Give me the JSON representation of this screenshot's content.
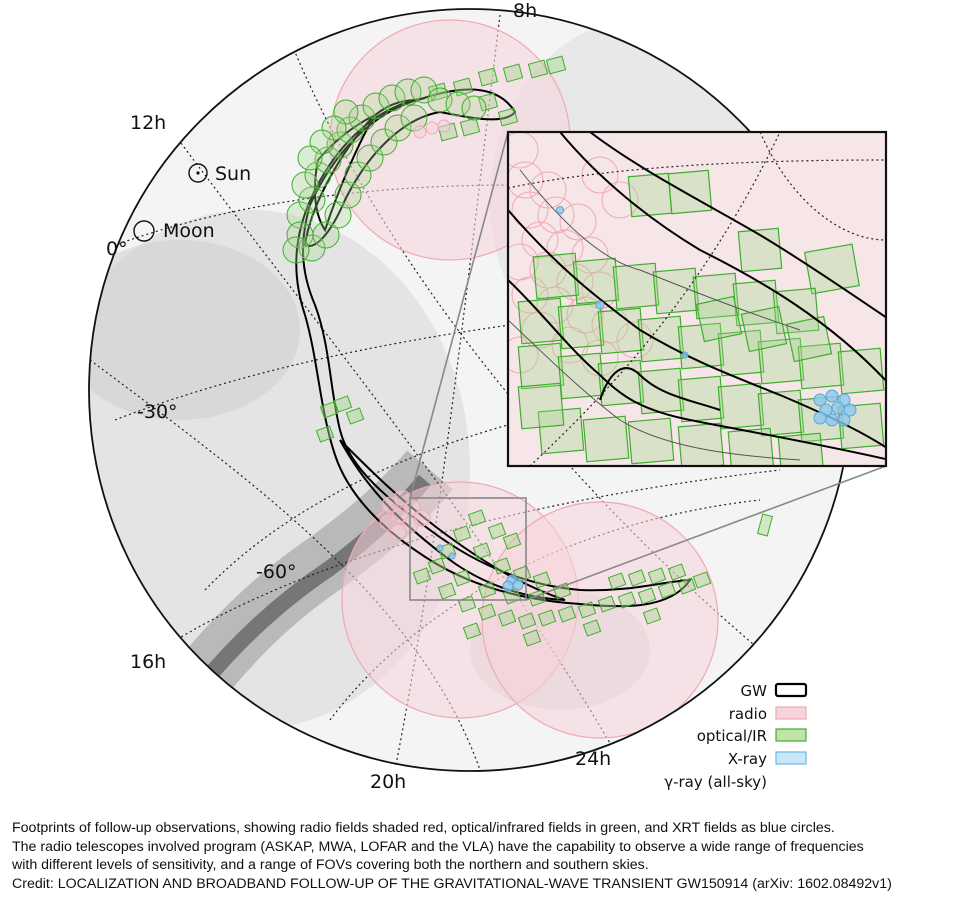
{
  "sky_map": {
    "ra_labels": {
      "h8": "8h",
      "h12": "12h",
      "h16": "16h",
      "h20": "20h",
      "h24": "24h"
    },
    "dec_labels": {
      "d0": "0°",
      "d30": "-30°",
      "d60": "-60°"
    },
    "markers": {
      "sun": "Sun",
      "moon": "Moon"
    }
  },
  "legend": {
    "items": [
      {
        "label": "GW",
        "color": "#000000"
      },
      {
        "label": "radio",
        "color": "#f3b8c2"
      },
      {
        "label": "optical/IR",
        "color": "#bfe3a8"
      },
      {
        "label": "X-ray",
        "color": "#a9d9f5"
      }
    ],
    "gamma_label": "γ-ray (all-sky)"
  },
  "colors": {
    "gw_contour": "#000000",
    "radio": "#f0a8b6",
    "optical": "#4cb83a",
    "xray": "#6fb6e6"
  },
  "caption": {
    "line1": "Footprints of follow-up observations, showing radio fields shaded red, optical/infrared fields in green, and XRT fields as blue circles.",
    "line2": "The radio telescopes involved program (ASKAP, MWA, LOFAR and the VLA) have the capability to observe a wide range of frequencies",
    "line3": "with different levels of sensitivity, and a range of FOVs covering both the northern and southern skies.",
    "credit": "Credit: LOCALIZATION AND BROADBAND FOLLOW-UP OF THE GRAVITATIONAL-WAVE TRANSIENT GW150914 (arXiv: 1602.08492v1)"
  }
}
